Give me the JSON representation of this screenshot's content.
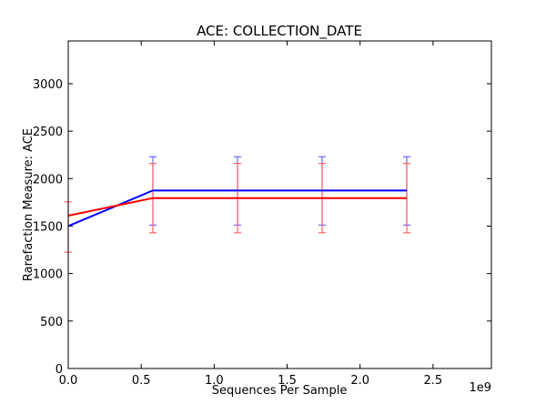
{
  "chart_data": {
    "type": "line",
    "title": "ACE: COLLECTION_DATE",
    "xlabel": "Sequences Per Sample",
    "ylabel": "Rarefaction Measure: ACE",
    "x_offset_label": "1e9",
    "xlim": [
      0.0,
      2.9
    ],
    "ylim": [
      0,
      3450
    ],
    "x_ticks": [
      0.0,
      0.5,
      1.0,
      1.5,
      2.0,
      2.5
    ],
    "x_tick_labels": [
      "0.0",
      "0.5",
      "1.0",
      "1.5",
      "2.0",
      "2.5"
    ],
    "y_ticks": [
      0,
      500,
      1000,
      1500,
      2000,
      2500,
      3000
    ],
    "y_tick_labels": [
      "0",
      "500",
      "1000",
      "1500",
      "2000",
      "2500",
      "3000"
    ],
    "grid": false,
    "series": [
      {
        "name": "blue",
        "color": "#0000ff",
        "error_color": "#6666ff",
        "x": [
          0.0,
          0.58,
          1.16,
          1.74,
          2.32
        ],
        "y": [
          1500,
          1875,
          1875,
          1875,
          1875
        ],
        "err_low": [
          null,
          1510,
          1510,
          1510,
          1510
        ],
        "err_high": [
          null,
          2230,
          2230,
          2230,
          2230
        ]
      },
      {
        "name": "red",
        "color": "#ff0000",
        "error_color": "#ff6666",
        "x": [
          0.0,
          0.58,
          1.16,
          1.74,
          2.32
        ],
        "y": [
          1610,
          1795,
          1795,
          1795,
          1795
        ],
        "err_low": [
          1225,
          1430,
          1430,
          1430,
          1430
        ],
        "err_high": [
          1755,
          2160,
          2160,
          2160,
          2160
        ]
      }
    ]
  }
}
